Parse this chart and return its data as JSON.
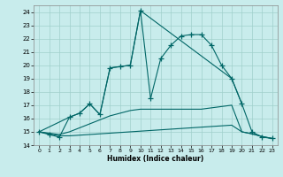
{
  "xlabel": "Humidex (Indice chaleur)",
  "xlim": [
    -0.5,
    23.5
  ],
  "ylim": [
    14,
    24.5
  ],
  "xticks": [
    0,
    1,
    2,
    3,
    4,
    5,
    6,
    7,
    8,
    9,
    10,
    11,
    12,
    13,
    14,
    15,
    16,
    17,
    18,
    19,
    20,
    21,
    22,
    23
  ],
  "yticks": [
    14,
    15,
    16,
    17,
    18,
    19,
    20,
    21,
    22,
    23,
    24
  ],
  "bg_color": "#c8ecec",
  "line_color": "#006666",
  "grid_color": "#a0d0cc",
  "series": {
    "main": {
      "x": [
        0,
        1,
        2,
        3,
        4,
        5,
        6,
        7,
        8,
        9,
        10,
        11,
        12,
        13,
        14,
        15,
        16,
        17,
        18,
        19,
        20,
        21,
        22,
        23
      ],
      "y": [
        15.0,
        14.8,
        14.6,
        16.1,
        16.4,
        17.1,
        16.3,
        19.8,
        19.9,
        20.0,
        24.1,
        17.5,
        20.5,
        21.5,
        22.2,
        22.3,
        22.3,
        21.5,
        20.0,
        19.0,
        17.1,
        15.0,
        14.6,
        14.5
      ]
    },
    "upper_line": {
      "x": [
        0,
        3,
        4,
        5,
        6,
        7,
        8,
        9,
        10,
        19,
        20
      ],
      "y": [
        15.0,
        16.1,
        16.4,
        17.1,
        16.3,
        19.8,
        19.9,
        20.0,
        24.1,
        19.0,
        17.1
      ]
    },
    "lower_flat": {
      "x": [
        0,
        1,
        2,
        3,
        4,
        5,
        6,
        7,
        8,
        9,
        10,
        11,
        12,
        13,
        14,
        15,
        16,
        17,
        18,
        19,
        20,
        21,
        22,
        23
      ],
      "y": [
        15.0,
        14.85,
        14.7,
        14.7,
        14.75,
        14.8,
        14.85,
        14.9,
        14.95,
        15.0,
        15.05,
        15.1,
        15.15,
        15.2,
        15.25,
        15.3,
        15.35,
        15.4,
        15.45,
        15.5,
        15.0,
        14.85,
        14.65,
        14.5
      ]
    },
    "mid_line": {
      "x": [
        0,
        1,
        2,
        3,
        4,
        5,
        6,
        7,
        8,
        9,
        10,
        11,
        12,
        13,
        14,
        15,
        16,
        17,
        18,
        19,
        20,
        21,
        22,
        23
      ],
      "y": [
        15.0,
        14.9,
        14.8,
        15.0,
        15.3,
        15.6,
        15.9,
        16.2,
        16.4,
        16.6,
        16.7,
        16.7,
        16.7,
        16.7,
        16.7,
        16.7,
        16.7,
        16.8,
        16.9,
        17.0,
        15.0,
        14.85,
        14.65,
        14.5
      ]
    }
  }
}
